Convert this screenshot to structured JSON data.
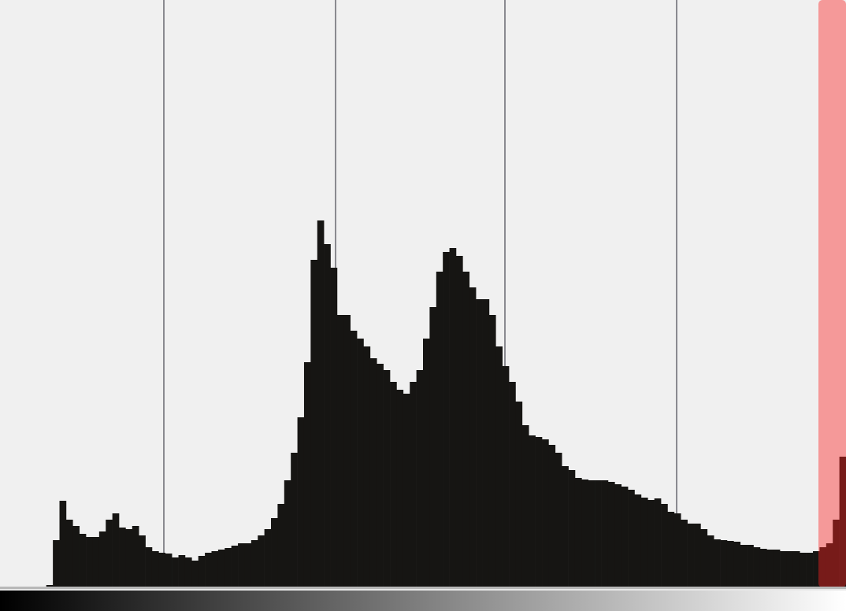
{
  "chart_data": {
    "type": "histogram",
    "bins": [
      0,
      2,
      4,
      6,
      8,
      10,
      12,
      14,
      16,
      18,
      20,
      22,
      24,
      26,
      28,
      30,
      32,
      34,
      36,
      38,
      40,
      42,
      44,
      46,
      48,
      50,
      52,
      54,
      56,
      58,
      60,
      62,
      64,
      66,
      68,
      70,
      72,
      74,
      76,
      78,
      80,
      82,
      84,
      86,
      88,
      90,
      92,
      94,
      96,
      98,
      100,
      102,
      104,
      106,
      108,
      110,
      112,
      114,
      116,
      118,
      120,
      122,
      124,
      126,
      128,
      130,
      132,
      134,
      136,
      138,
      140,
      142,
      144,
      146,
      148,
      150,
      152,
      154,
      156,
      158,
      160,
      162,
      164,
      166,
      168,
      170,
      172,
      174,
      176,
      178,
      180,
      182,
      184,
      186,
      188,
      190,
      192,
      194,
      196,
      198,
      200,
      202,
      204,
      206,
      208,
      210,
      212,
      214,
      216,
      218,
      220,
      222,
      224,
      226,
      228,
      230,
      232,
      234,
      236,
      238,
      240,
      242,
      244,
      246,
      248,
      250,
      252,
      254,
      256
    ],
    "values": [
      0,
      0,
      0,
      0,
      0,
      0,
      0,
      3,
      60,
      110,
      86,
      78,
      68,
      64,
      64,
      71,
      86,
      94,
      76,
      74,
      78,
      66,
      51,
      46,
      44,
      43,
      38,
      41,
      38,
      34,
      40,
      44,
      46,
      48,
      50,
      53,
      56,
      56,
      60,
      66,
      74,
      88,
      106,
      136,
      171,
      216,
      286,
      416,
      466,
      436,
      406,
      346,
      346,
      326,
      316,
      306,
      291,
      284,
      276,
      261,
      251,
      246,
      261,
      276,
      316,
      356,
      401,
      426,
      431,
      421,
      401,
      381,
      366,
      366,
      346,
      306,
      281,
      261,
      236,
      206,
      193,
      191,
      188,
      181,
      171,
      154,
      149,
      139,
      137,
      136,
      136,
      136,
      134,
      131,
      128,
      124,
      118,
      114,
      111,
      113,
      106,
      96,
      94,
      86,
      81,
      81,
      74,
      66,
      61,
      60,
      59,
      58,
      54,
      54,
      51,
      49,
      48,
      48,
      46,
      46,
      46,
      44,
      44,
      46,
      51,
      56,
      86,
      166
    ],
    "color": "#161513",
    "xlim": [
      0,
      256
    ],
    "ylim": [
      0,
      746
    ]
  }
}
